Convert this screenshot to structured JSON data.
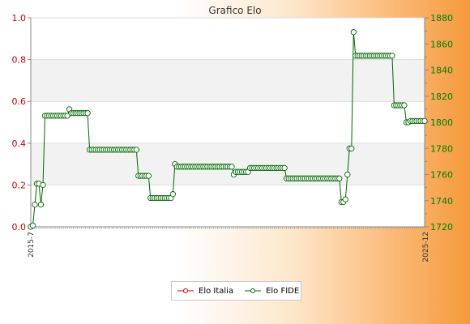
{
  "chart_data": {
    "type": "line",
    "title": "Grafico Elo",
    "colors": {
      "italia": "#cc0000",
      "fide": "#006600",
      "left_axis": "#cc0000",
      "right_axis": "#008000"
    },
    "y_left": {
      "ylim": [
        0.0,
        1.0
      ],
      "ticks": [
        "0.0",
        "0.2",
        "0.4",
        "0.6",
        "0.8",
        "1.0"
      ]
    },
    "y_right": {
      "ylim": [
        1720,
        1880
      ],
      "ticks": [
        "1720",
        "1740",
        "1760",
        "1780",
        "1800",
        "1820",
        "1840",
        "1860",
        "1880"
      ]
    },
    "x_first_label": "2015-7",
    "x_last_label": "2025-12",
    "grid": "horizontal bands",
    "legend_position": "bottom-center",
    "series": [
      {
        "name": "Elo Italia",
        "axis": "left",
        "values": []
      },
      {
        "name": "Elo FIDE",
        "axis": "right",
        "values": [
          1720,
          1721,
          1737,
          1753,
          1753,
          1737,
          1752,
          1805,
          1805,
          1805,
          1805,
          1805,
          1805,
          1805,
          1805,
          1805,
          1805,
          1805,
          1805,
          1810,
          1807,
          1807,
          1807,
          1807,
          1807,
          1807,
          1807,
          1807,
          1807,
          1779,
          1779,
          1779,
          1779,
          1779,
          1779,
          1779,
          1779,
          1779,
          1779,
          1779,
          1779,
          1779,
          1779,
          1779,
          1779,
          1779,
          1779,
          1779,
          1779,
          1779,
          1779,
          1779,
          1779,
          1759,
          1759,
          1759,
          1759,
          1759,
          1759,
          1742,
          1742,
          1742,
          1742,
          1742,
          1742,
          1742,
          1742,
          1742,
          1742,
          1742,
          1745,
          1768,
          1766,
          1766,
          1766,
          1766,
          1766,
          1766,
          1766,
          1766,
          1766,
          1766,
          1766,
          1766,
          1766,
          1766,
          1766,
          1766,
          1766,
          1766,
          1766,
          1766,
          1766,
          1766,
          1766,
          1766,
          1766,
          1766,
          1766,
          1766,
          1760,
          1762,
          1762,
          1762,
          1762,
          1762,
          1762,
          1762,
          1765,
          1765,
          1765,
          1765,
          1765,
          1765,
          1765,
          1765,
          1765,
          1765,
          1765,
          1765,
          1765,
          1765,
          1765,
          1765,
          1765,
          1765,
          1757,
          1757,
          1757,
          1757,
          1757,
          1757,
          1757,
          1757,
          1757,
          1757,
          1757,
          1757,
          1757,
          1757,
          1757,
          1757,
          1757,
          1757,
          1757,
          1757,
          1757,
          1757,
          1757,
          1757,
          1757,
          1757,
          1757,
          1739,
          1739,
          1741,
          1760,
          1780,
          1780,
          1869,
          1851,
          1851,
          1851,
          1851,
          1851,
          1851,
          1851,
          1851,
          1851,
          1851,
          1851,
          1851,
          1851,
          1851,
          1851,
          1851,
          1851,
          1851,
          1851,
          1813,
          1813,
          1813,
          1813,
          1813,
          1813,
          1800,
          1800,
          1801,
          1801,
          1801,
          1801,
          1801,
          1801,
          1801,
          1801
        ]
      }
    ]
  }
}
